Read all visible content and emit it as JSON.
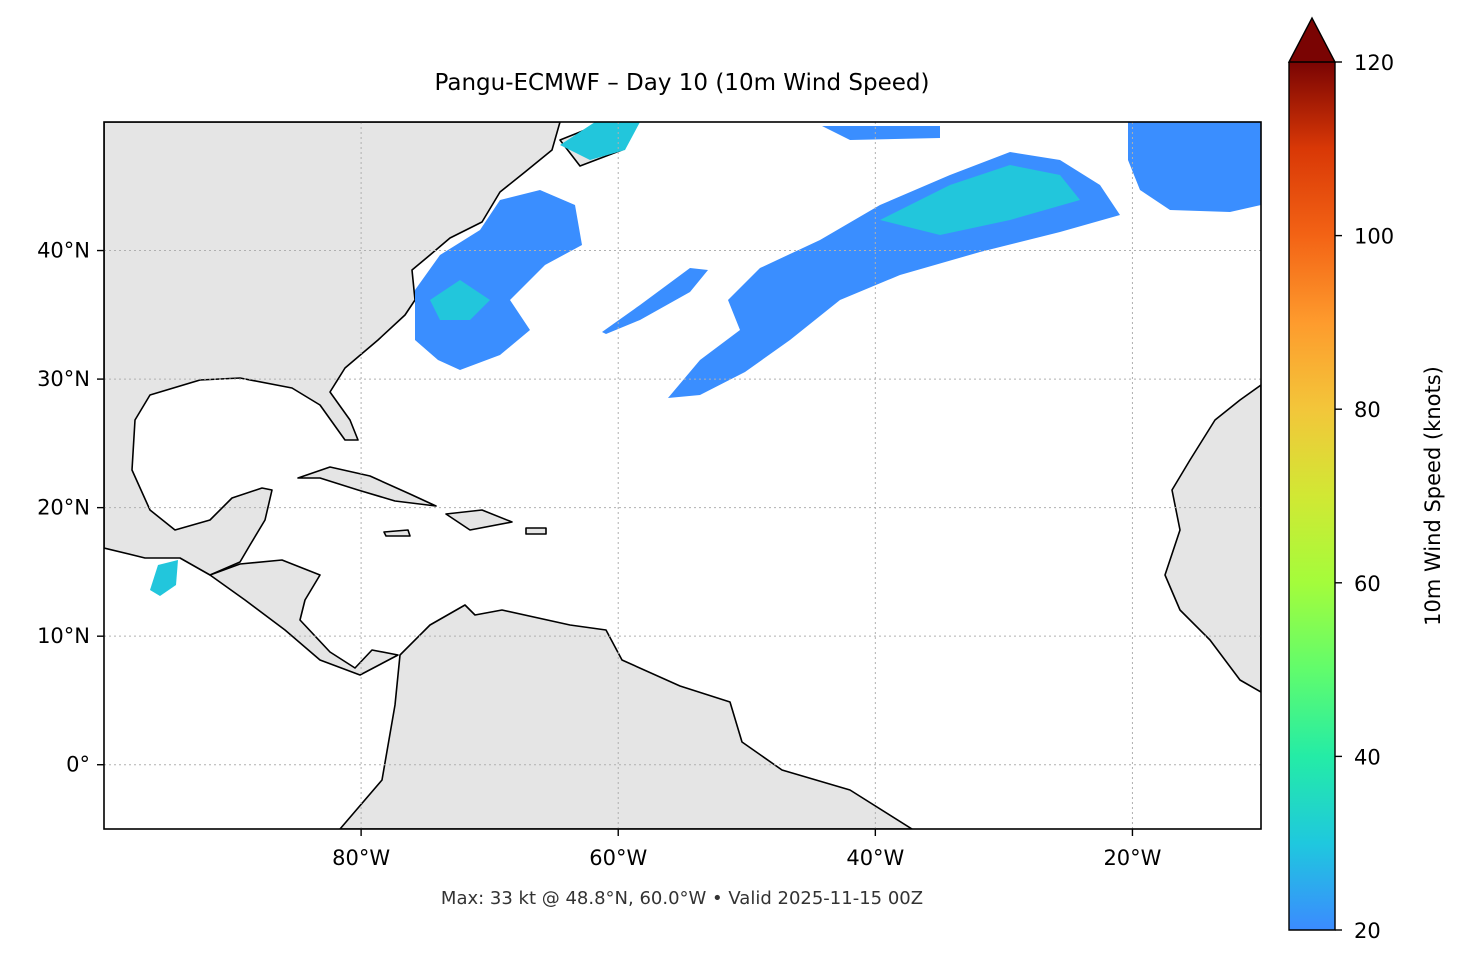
{
  "chart_data": {
    "type": "map",
    "title": "Pangu-ECMWF – Day 10 (10m Wind Speed)",
    "footer": "Max: 33 kt @ 48.8°N, 60.0°W • Valid 2025-11-15 00Z",
    "xlim": [
      -100,
      -10
    ],
    "ylim": [
      -5,
      50
    ],
    "xticks": [
      {
        "value": -80,
        "label": "80°W"
      },
      {
        "value": -60,
        "label": "60°W"
      },
      {
        "value": -40,
        "label": "40°W"
      },
      {
        "value": -20,
        "label": "20°W"
      }
    ],
    "yticks": [
      {
        "value": 0,
        "label": "0°"
      },
      {
        "value": 10,
        "label": "10°N"
      },
      {
        "value": 20,
        "label": "20°N"
      },
      {
        "value": 30,
        "label": "30°N"
      },
      {
        "value": 40,
        "label": "40°N"
      }
    ],
    "grid": true,
    "colorbar": {
      "label": "10m Wind Speed (knots)",
      "lim": [
        20,
        120
      ],
      "ticks": [
        20,
        40,
        60,
        80,
        100,
        120
      ]
    }
  }
}
